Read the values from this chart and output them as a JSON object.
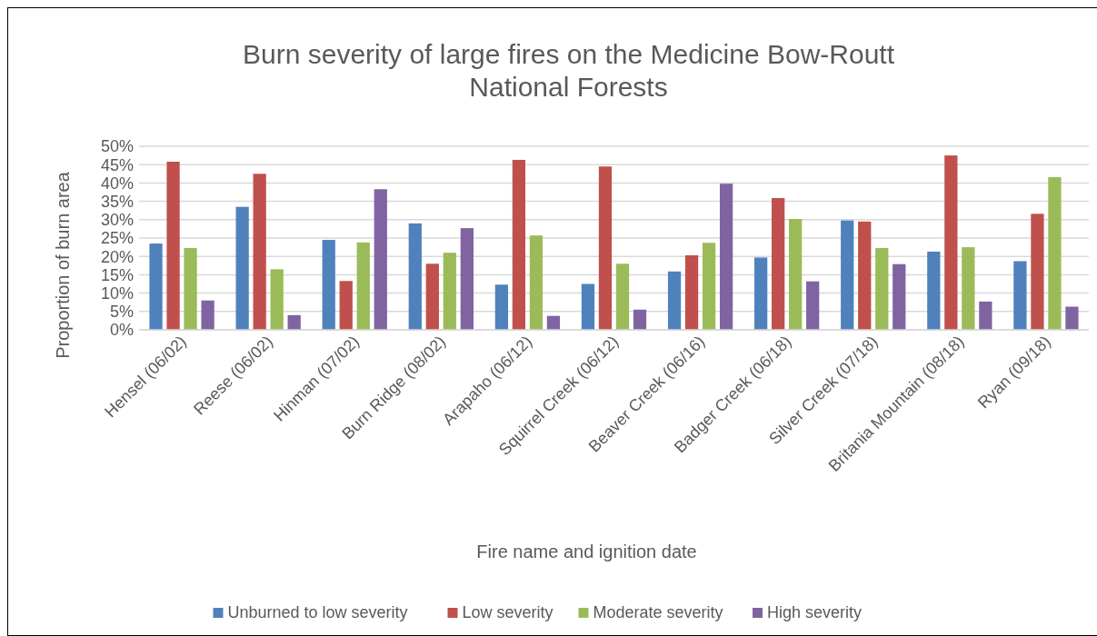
{
  "chart_data": {
    "type": "bar",
    "title": "Burn severity of large fires on the Medicine Bow-Routt National Forests",
    "xlabel": "Fire name and ignition date",
    "ylabel": "Proportion of burn area",
    "categories": [
      "Hensel (06/02)",
      "Reese (06/02)",
      "Hinman (07/02)",
      "Burn Ridge (08/02)",
      "Arapaho (06/12)",
      "Squirrel Creek (06/12)",
      "Beaver Creek (06/16)",
      "Badger Creek (06/18)",
      "Silver Creek (07/18)",
      "Britania Mountain (08/18)",
      "Ryan (09/18)"
    ],
    "series": [
      {
        "name": "Unburned to low severity",
        "color": "#4f81bd",
        "values": [
          23.5,
          33.5,
          24.5,
          29,
          12.3,
          12.5,
          15.9,
          19.7,
          29.8,
          21.3,
          18.7
        ]
      },
      {
        "name": "Low severity",
        "color": "#c0504d",
        "values": [
          45.8,
          42.5,
          13.3,
          18,
          46.3,
          44.5,
          20.3,
          35.9,
          29.5,
          47.5,
          31.6
        ]
      },
      {
        "name": "Moderate severity",
        "color": "#9bbb59",
        "values": [
          22.3,
          16.5,
          23.8,
          21,
          25.7,
          18,
          23.7,
          30.2,
          22.3,
          22.5,
          41.6
        ]
      },
      {
        "name": "High severity",
        "color": "#8064a2",
        "values": [
          8,
          4,
          38.3,
          27.7,
          3.8,
          5.5,
          39.8,
          13.2,
          17.9,
          7.7,
          6.3
        ]
      }
    ],
    "ylim": [
      0,
      50
    ],
    "yticks": [
      {
        "value": 0,
        "label": "0%"
      },
      {
        "value": 5,
        "label": "5%"
      },
      {
        "value": 10,
        "label": "10%"
      },
      {
        "value": 15,
        "label": "15%"
      },
      {
        "value": 20,
        "label": "20%"
      },
      {
        "value": 25,
        "label": "25%"
      },
      {
        "value": 30,
        "label": "30%"
      },
      {
        "value": 35,
        "label": "35%"
      },
      {
        "value": 40,
        "label": "40%"
      },
      {
        "value": 45,
        "label": "45%"
      },
      {
        "value": 50,
        "label": "50%"
      }
    ],
    "grid": "y",
    "legend": "bottom"
  }
}
